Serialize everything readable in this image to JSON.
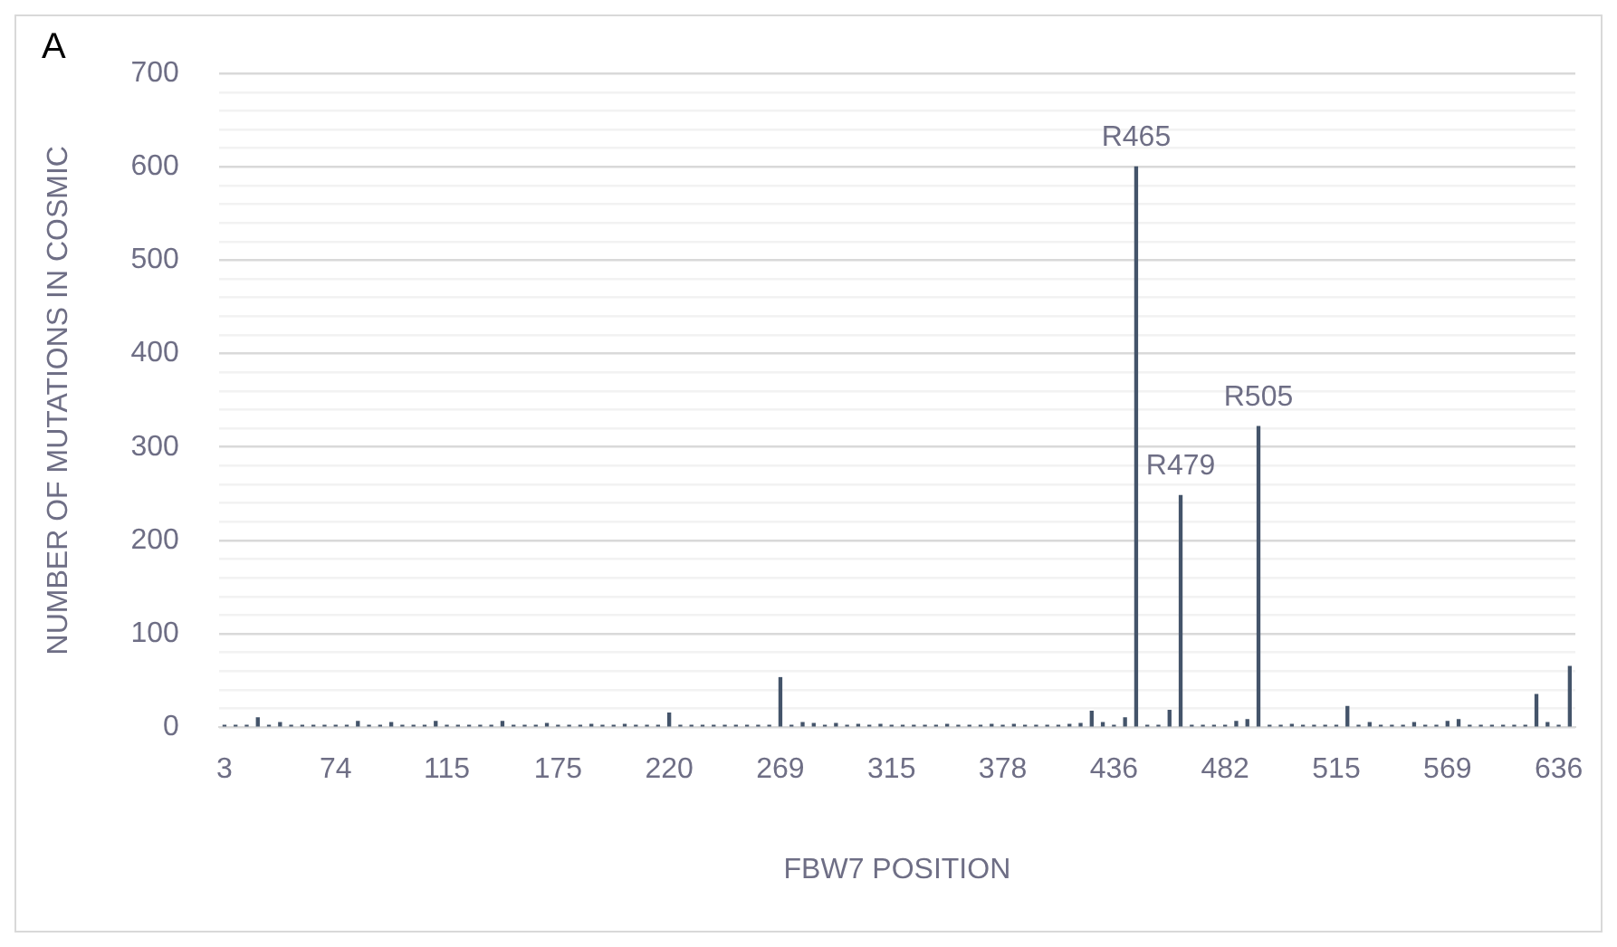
{
  "chart_data": {
    "type": "bar",
    "title": "A",
    "xlabel": "FBW7 POSITION",
    "ylabel": "NUMBER OF MUTATIONS IN COSMIC",
    "categories": [
      "3",
      null,
      null,
      null,
      null,
      null,
      null,
      null,
      null,
      null,
      "74",
      null,
      null,
      null,
      null,
      null,
      null,
      null,
      null,
      null,
      "115",
      null,
      null,
      null,
      null,
      null,
      null,
      null,
      null,
      null,
      "175",
      null,
      null,
      null,
      null,
      null,
      null,
      null,
      null,
      null,
      "220",
      null,
      null,
      null,
      null,
      null,
      null,
      null,
      null,
      null,
      "269",
      null,
      null,
      null,
      null,
      null,
      null,
      null,
      null,
      null,
      "315",
      null,
      null,
      null,
      null,
      null,
      null,
      null,
      null,
      null,
      "378",
      null,
      null,
      null,
      null,
      null,
      null,
      null,
      null,
      null,
      "436",
      null,
      null,
      null,
      null,
      null,
      null,
      null,
      null,
      null,
      "482",
      null,
      null,
      null,
      null,
      null,
      null,
      null,
      null,
      null,
      "515",
      null,
      null,
      null,
      null,
      null,
      null,
      null,
      null,
      null,
      "569",
      null,
      null,
      null,
      null,
      null,
      null,
      null,
      null,
      null,
      "636",
      null
    ],
    "values": [
      2,
      2,
      2,
      10,
      2,
      5,
      2,
      2,
      2,
      2,
      2,
      2,
      6,
      2,
      2,
      5,
      2,
      2,
      2,
      6,
      2,
      2,
      2,
      2,
      2,
      6,
      2,
      2,
      2,
      4,
      2,
      2,
      2,
      3,
      2,
      2,
      3,
      2,
      2,
      2,
      15,
      2,
      2,
      2,
      2,
      2,
      2,
      2,
      2,
      2,
      53,
      2,
      5,
      4,
      2,
      4,
      2,
      3,
      2,
      3,
      2,
      2,
      2,
      2,
      2,
      3,
      2,
      2,
      2,
      3,
      2,
      3,
      2,
      2,
      2,
      2,
      3,
      4,
      17,
      5,
      2,
      10,
      600,
      2,
      2,
      18,
      248,
      2,
      2,
      2,
      2,
      6,
      8,
      322,
      2,
      2,
      3,
      2,
      2,
      2,
      2,
      22,
      2,
      5,
      2,
      2,
      2,
      5,
      2,
      2,
      6,
      8,
      2,
      2,
      2,
      2,
      2,
      2,
      35,
      5,
      2,
      65
    ],
    "color": "#44546a",
    "ylim": [
      0,
      700
    ],
    "yticks": [
      0,
      {
        "value": 20,
        "label": null
      },
      {
        "value": 40,
        "label": null
      },
      {
        "value": 60,
        "label": null
      },
      {
        "value": 80,
        "label": null
      },
      100,
      {
        "value": 120,
        "label": null
      },
      {
        "value": 140,
        "label": null
      },
      {
        "value": 160,
        "label": null
      },
      {
        "value": 180,
        "label": null
      },
      200,
      {
        "value": 220,
        "label": null
      },
      {
        "value": 240,
        "label": null
      },
      {
        "value": 260,
        "label": null
      },
      {
        "value": 280,
        "label": null
      },
      300,
      {
        "value": 320,
        "label": null
      },
      {
        "value": 340,
        "label": null
      },
      {
        "value": 360,
        "label": null
      },
      {
        "value": 380,
        "label": null
      },
      400,
      {
        "value": 420,
        "label": null
      },
      {
        "value": 440,
        "label": null
      },
      {
        "value": 460,
        "label": null
      },
      {
        "value": 480,
        "label": null
      },
      500,
      {
        "value": 520,
        "label": null
      },
      {
        "value": 540,
        "label": null
      },
      {
        "value": 560,
        "label": null
      },
      {
        "value": 580,
        "label": null
      },
      600,
      {
        "value": 620,
        "label": null
      },
      {
        "value": 640,
        "label": null
      },
      {
        "value": 660,
        "label": null
      },
      {
        "value": 680,
        "label": null
      },
      700
    ],
    "grid": "y",
    "legend": false,
    "annotations": [
      {
        "text": "R465",
        "y": 600
      },
      {
        "text": "R479",
        "y": 248
      },
      {
        "text": "R505",
        "y": 322
      }
    ]
  }
}
